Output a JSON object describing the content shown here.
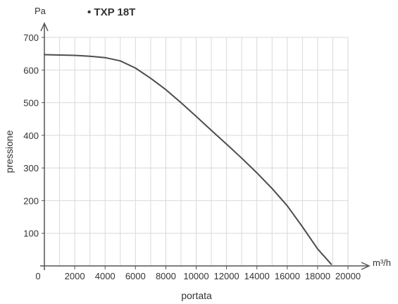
{
  "chart_data": {
    "type": "line",
    "title": "• TXP 18T",
    "xlabel": "portata",
    "ylabel": "pressione",
    "x_unit": "m³/h",
    "y_unit": "Pa",
    "xlim": [
      0,
      20000
    ],
    "ylim": [
      0,
      700
    ],
    "x_ticks": [
      0,
      2000,
      4000,
      6000,
      8000,
      10000,
      12000,
      14000,
      16000,
      18000,
      20000
    ],
    "x_tick_labels": [
      "0",
      "2000",
      "4000",
      "6000",
      "8000",
      "10000",
      "12000",
      "14000",
      "16000",
      "18000",
      "20000"
    ],
    "y_ticks": [
      100,
      200,
      300,
      400,
      500,
      600,
      700
    ],
    "y_tick_labels": [
      "100",
      "200",
      "300",
      "400",
      "500",
      "600",
      "700"
    ],
    "grid": true,
    "colors": {
      "line": "#4d4d4d",
      "grid": "#d9d9d9",
      "axis": "#555555",
      "text": "#333333"
    },
    "series": [
      {
        "x": [
          0,
          1000,
          2000,
          3000,
          4000,
          5000,
          6000,
          7000,
          8000,
          9000,
          10000,
          11000,
          12000,
          13000,
          14000,
          15000,
          16000,
          17000,
          18000,
          18900
        ],
        "y": [
          647,
          646,
          645,
          642,
          638,
          628,
          606,
          575,
          540,
          500,
          458,
          415,
          373,
          330,
          285,
          237,
          184,
          120,
          52,
          5
        ]
      }
    ]
  }
}
